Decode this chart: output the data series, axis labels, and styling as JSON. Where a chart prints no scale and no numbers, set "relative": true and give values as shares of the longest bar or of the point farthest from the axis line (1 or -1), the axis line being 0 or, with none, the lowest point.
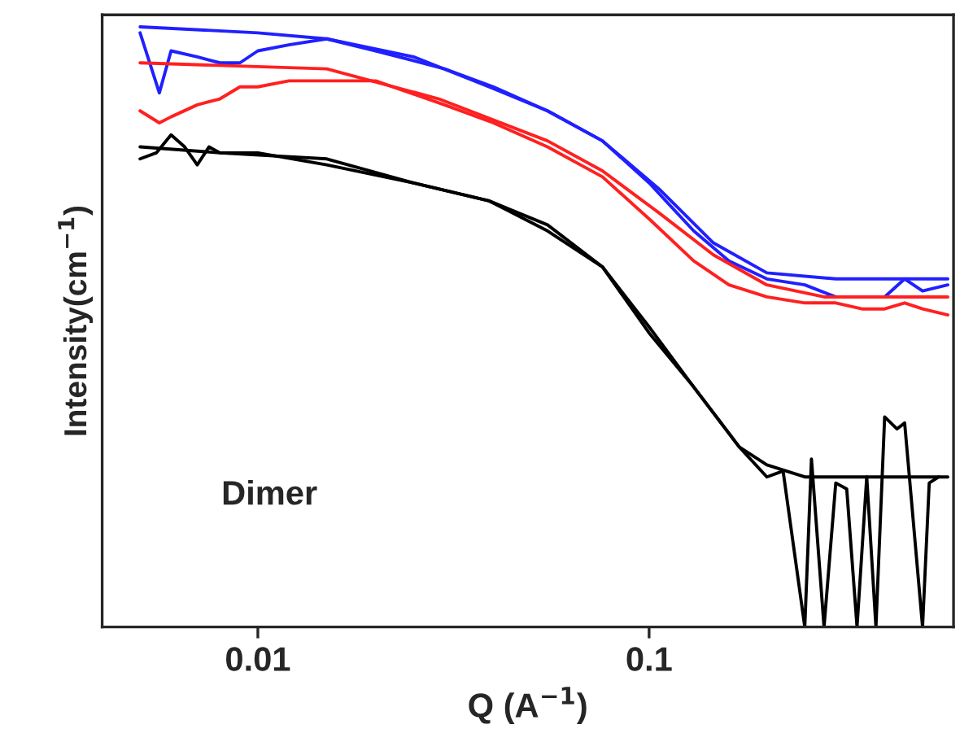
{
  "chart_data": {
    "type": "line",
    "relative": true,
    "log": "x",
    "xlabel": "Q (A$^{−1}$)",
    "ylabel": "Intensity(cm$^{−1}$)",
    "annotations": [
      "Dimer"
    ],
    "xlim": [
      0.004,
      0.6
    ],
    "xticks": [
      0.01,
      0.1
    ],
    "tick_labels": "x",
    "grid": false,
    "legend": false,
    "series": [
      {
        "color": "#2020ff",
        "x": [
          0.005,
          0.0056,
          0.006,
          0.007,
          0.008,
          0.009,
          0.01,
          0.012,
          0.015,
          0.02,
          0.03,
          0.04,
          0.055,
          0.076,
          0.1,
          0.13,
          0.16,
          0.2,
          0.25,
          0.3,
          0.35,
          0.4,
          0.45,
          0.5,
          0.58
        ],
        "values": [
          0.99,
          0.89,
          0.96,
          0.95,
          0.94,
          0.94,
          0.96,
          0.97,
          0.98,
          0.96,
          0.93,
          0.9,
          0.86,
          0.81,
          0.74,
          0.66,
          0.61,
          0.58,
          0.57,
          0.55,
          0.55,
          0.55,
          0.58,
          0.56,
          0.57
        ]
      },
      {
        "color": "#2020ff",
        "x": [
          0.005,
          0.01,
          0.015,
          0.025,
          0.039,
          0.055,
          0.076,
          0.106,
          0.146,
          0.2,
          0.3,
          0.58
        ],
        "values": [
          1.0,
          0.99,
          0.98,
          0.95,
          0.9,
          0.86,
          0.81,
          0.73,
          0.64,
          0.59,
          0.58,
          0.58
        ]
      },
      {
        "color": "#ff2020",
        "x": [
          0.005,
          0.0056,
          0.006,
          0.007,
          0.008,
          0.009,
          0.01,
          0.012,
          0.015,
          0.02,
          0.03,
          0.04,
          0.055,
          0.076,
          0.1,
          0.13,
          0.16,
          0.2,
          0.25,
          0.3,
          0.35,
          0.4,
          0.45,
          0.5,
          0.58
        ],
        "values": [
          0.86,
          0.84,
          0.85,
          0.87,
          0.88,
          0.9,
          0.9,
          0.91,
          0.91,
          0.91,
          0.87,
          0.84,
          0.8,
          0.75,
          0.68,
          0.61,
          0.57,
          0.55,
          0.54,
          0.54,
          0.53,
          0.53,
          0.54,
          0.53,
          0.52
        ]
      },
      {
        "color": "#ff2020",
        "x": [
          0.005,
          0.015,
          0.029,
          0.055,
          0.076,
          0.106,
          0.146,
          0.2,
          0.28,
          0.58
        ],
        "values": [
          0.94,
          0.93,
          0.88,
          0.81,
          0.76,
          0.69,
          0.62,
          0.57,
          0.55,
          0.55
        ]
      },
      {
        "color": "#000000",
        "x": [
          0.005,
          0.0055,
          0.006,
          0.0065,
          0.007,
          0.0075,
          0.008,
          0.009,
          0.01,
          0.015,
          0.025,
          0.039,
          0.055,
          0.076,
          0.1,
          0.13,
          0.17,
          0.2,
          0.22,
          0.25,
          0.26,
          0.28,
          0.3,
          0.32,
          0.34,
          0.36,
          0.38,
          0.4,
          0.43,
          0.45,
          0.5,
          0.52,
          0.55
        ],
        "values": [
          0.78,
          0.79,
          0.82,
          0.8,
          0.77,
          0.8,
          0.79,
          0.79,
          0.79,
          0.77,
          0.74,
          0.71,
          0.66,
          0.6,
          0.49,
          0.4,
          0.3,
          0.25,
          0.26,
          0,
          0.28,
          0,
          0.24,
          0.23,
          0,
          0.25,
          0,
          0.35,
          0.33,
          0.34,
          0,
          0.24,
          0.25
        ]
      },
      {
        "color": "#000000",
        "x": [
          0.005,
          0.008,
          0.015,
          0.025,
          0.039,
          0.055,
          0.076,
          0.1,
          0.13,
          0.17,
          0.2,
          0.25,
          0.58
        ],
        "values": [
          0.8,
          0.79,
          0.78,
          0.74,
          0.71,
          0.67,
          0.6,
          0.5,
          0.4,
          0.3,
          0.27,
          0.25,
          0.25
        ]
      }
    ]
  }
}
